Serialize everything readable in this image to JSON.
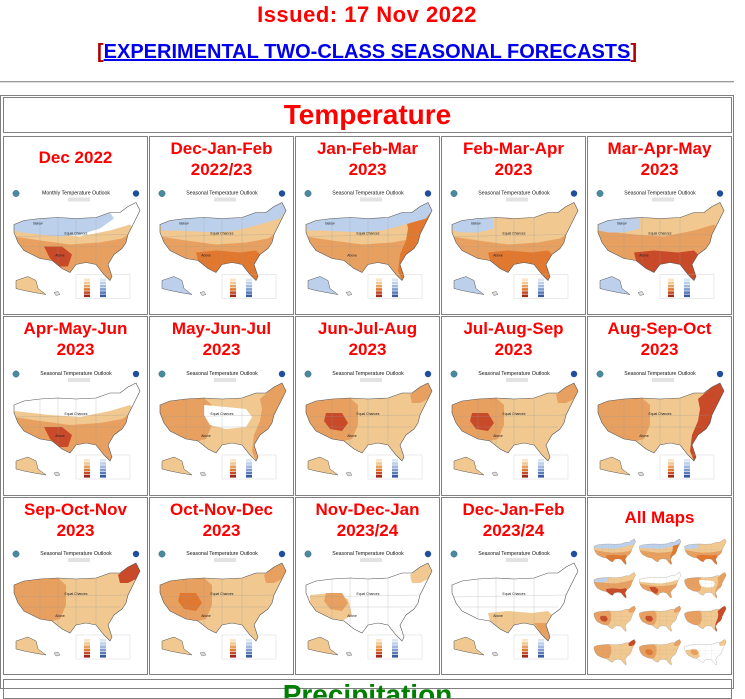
{
  "header": {
    "issued": "Issued: 17 Nov 2022",
    "bracket_open": "[",
    "bracket_close": "]",
    "link_label": "EXPERIMENTAL TWO-CLASS SEASONAL FORECASTS"
  },
  "temperature": {
    "title": "Temperature",
    "panels": [
      {
        "line1": "Dec 2022",
        "line2": "",
        "kind": "monthly"
      },
      {
        "line1": "Dec-Jan-Feb",
        "line2": "2022/23",
        "kind": "djf"
      },
      {
        "line1": "Jan-Feb-Mar",
        "line2": "2023",
        "kind": "jfm"
      },
      {
        "line1": "Feb-Mar-Apr",
        "line2": "2023",
        "kind": "fma"
      },
      {
        "line1": "Mar-Apr-May",
        "line2": "2023",
        "kind": "mam"
      },
      {
        "line1": "Apr-May-Jun",
        "line2": "2023",
        "kind": "amj"
      },
      {
        "line1": "May-Jun-Jul",
        "line2": "2023",
        "kind": "mjj"
      },
      {
        "line1": "Jun-Jul-Aug",
        "line2": "2023",
        "kind": "jja"
      },
      {
        "line1": "Jul-Aug-Sep",
        "line2": "2023",
        "kind": "jas"
      },
      {
        "line1": "Aug-Sep-Oct",
        "line2": "2023",
        "kind": "aso"
      },
      {
        "line1": "Sep-Oct-Nov",
        "line2": "2023",
        "kind": "son"
      },
      {
        "line1": "Oct-Nov-Dec",
        "line2": "2023",
        "kind": "ond"
      },
      {
        "line1": "Nov-Dec-Jan",
        "line2": "2023/24",
        "kind": "ndj"
      },
      {
        "line1": "Dec-Jan-Feb",
        "line2": "2023/24",
        "kind": "djf2"
      }
    ],
    "all_maps_label": "All Maps"
  },
  "map_text": {
    "monthly_title": "Monthly Temperature Outlook",
    "seasonal_title": "Seasonal Temperature Outlook",
    "equal_chances": "Equal Chances",
    "above": "Above",
    "below": "Below"
  },
  "precipitation": {
    "title": "Precipitation"
  },
  "colors": {
    "heading_red": "#ff0000",
    "link_blue": "#0000ee",
    "above_light": "#f0c890",
    "above_mid": "#e8a060",
    "above_strong": "#e07830",
    "above_max": "#c84a28",
    "below_light": "#bcd0ec",
    "below_mid": "#a0b8e0"
  }
}
